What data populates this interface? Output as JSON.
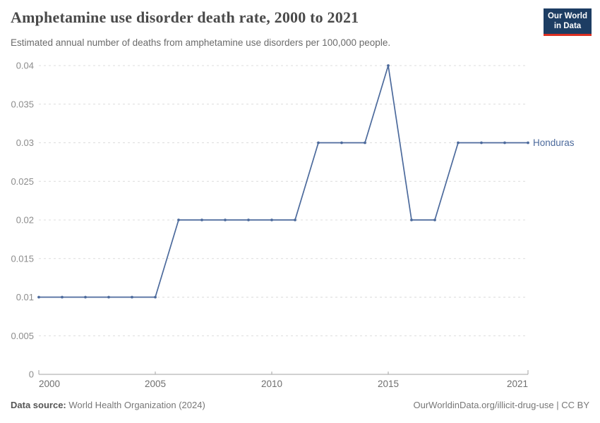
{
  "header": {
    "title": "Amphetamine use disorder death rate, 2000 to 2021",
    "subtitle": "Estimated annual number of deaths from amphetamine use disorders per 100,000 people."
  },
  "logo": {
    "line1": "Our World",
    "line2": "in Data",
    "bg_color": "#1d3d63",
    "bar_color": "#dc3022"
  },
  "chart_data": {
    "type": "line",
    "title": "Amphetamine use disorder death rate, 2000 to 2021",
    "subtitle": "Estimated annual number of deaths from amphetamine use disorders per 100,000 people.",
    "xlabel": "",
    "ylabel": "",
    "x": [
      2000,
      2001,
      2002,
      2003,
      2004,
      2005,
      2006,
      2007,
      2008,
      2009,
      2010,
      2011,
      2012,
      2013,
      2014,
      2015,
      2016,
      2017,
      2018,
      2019,
      2020,
      2021
    ],
    "series": [
      {
        "name": "Honduras",
        "color": "#4c6a9c",
        "values": [
          0.01,
          0.01,
          0.01,
          0.01,
          0.01,
          0.01,
          0.02,
          0.02,
          0.02,
          0.02,
          0.02,
          0.02,
          0.03,
          0.03,
          0.03,
          0.04,
          0.02,
          0.02,
          0.03,
          0.03,
          0.03,
          0.03
        ]
      }
    ],
    "ylim": [
      0,
      0.04
    ],
    "yticks": [
      0,
      0.005,
      0.01,
      0.015,
      0.02,
      0.025,
      0.03,
      0.035,
      0.04
    ],
    "ytick_labels": [
      "0",
      "0.005",
      "0.01",
      "0.015",
      "0.02",
      "0.025",
      "0.03",
      "0.035",
      "0.04"
    ],
    "xticks": [
      2000,
      2005,
      2010,
      2015,
      2021
    ],
    "xtick_labels": [
      "2000",
      "2005",
      "2010",
      "2015",
      "2021"
    ],
    "grid": "horizontal-dashed",
    "legend": "series-label-at-line-end",
    "grid_color": "#dcdcdc",
    "axis_color": "#a3a3a3",
    "ytick_text_color": "#8c8c8c",
    "xtick_text_color": "#6f6f6f"
  },
  "footer": {
    "datasource_label": "Data source:",
    "datasource_value": " World Health Organization (2024)",
    "link": "OurWorldinData.org/illicit-drug-use | CC BY"
  }
}
